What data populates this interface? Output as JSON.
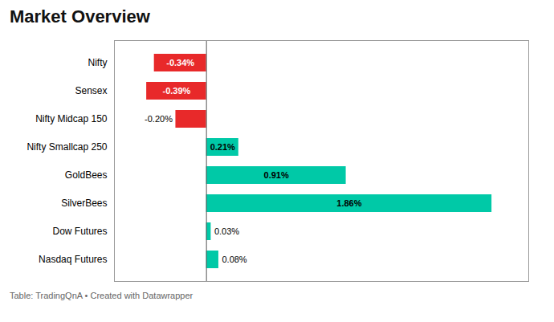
{
  "chart_data": {
    "type": "bar",
    "orientation": "horizontal",
    "title": "Market Overview",
    "annotations": [
      "Table: TradingQnA • Created with Datawrapper"
    ],
    "categories": [
      "Nifty",
      "Sensex",
      "Nifty Midcap 150",
      "Nifty Smallcap 250",
      "GoldBees",
      "SilverBees",
      "Dow Futures",
      "Nasdaq Futures"
    ],
    "values": [
      -0.34,
      -0.39,
      -0.2,
      0.21,
      0.91,
      1.86,
      0.03,
      0.08
    ],
    "value_labels": [
      "-0.34%",
      "-0.39%",
      "-0.20%",
      "0.21%",
      "0.91%",
      "1.86%",
      "0.03%",
      "0.08%"
    ],
    "colors": [
      "#e8292a",
      "#e8292a",
      "#e8292a",
      "#00c9a7",
      "#00c9a7",
      "#00c9a7",
      "#00c9a7",
      "#00c9a7"
    ],
    "xlim": [
      -0.6,
      2.1
    ],
    "data_labels": true,
    "tick_labels": "y",
    "grid": false
  }
}
